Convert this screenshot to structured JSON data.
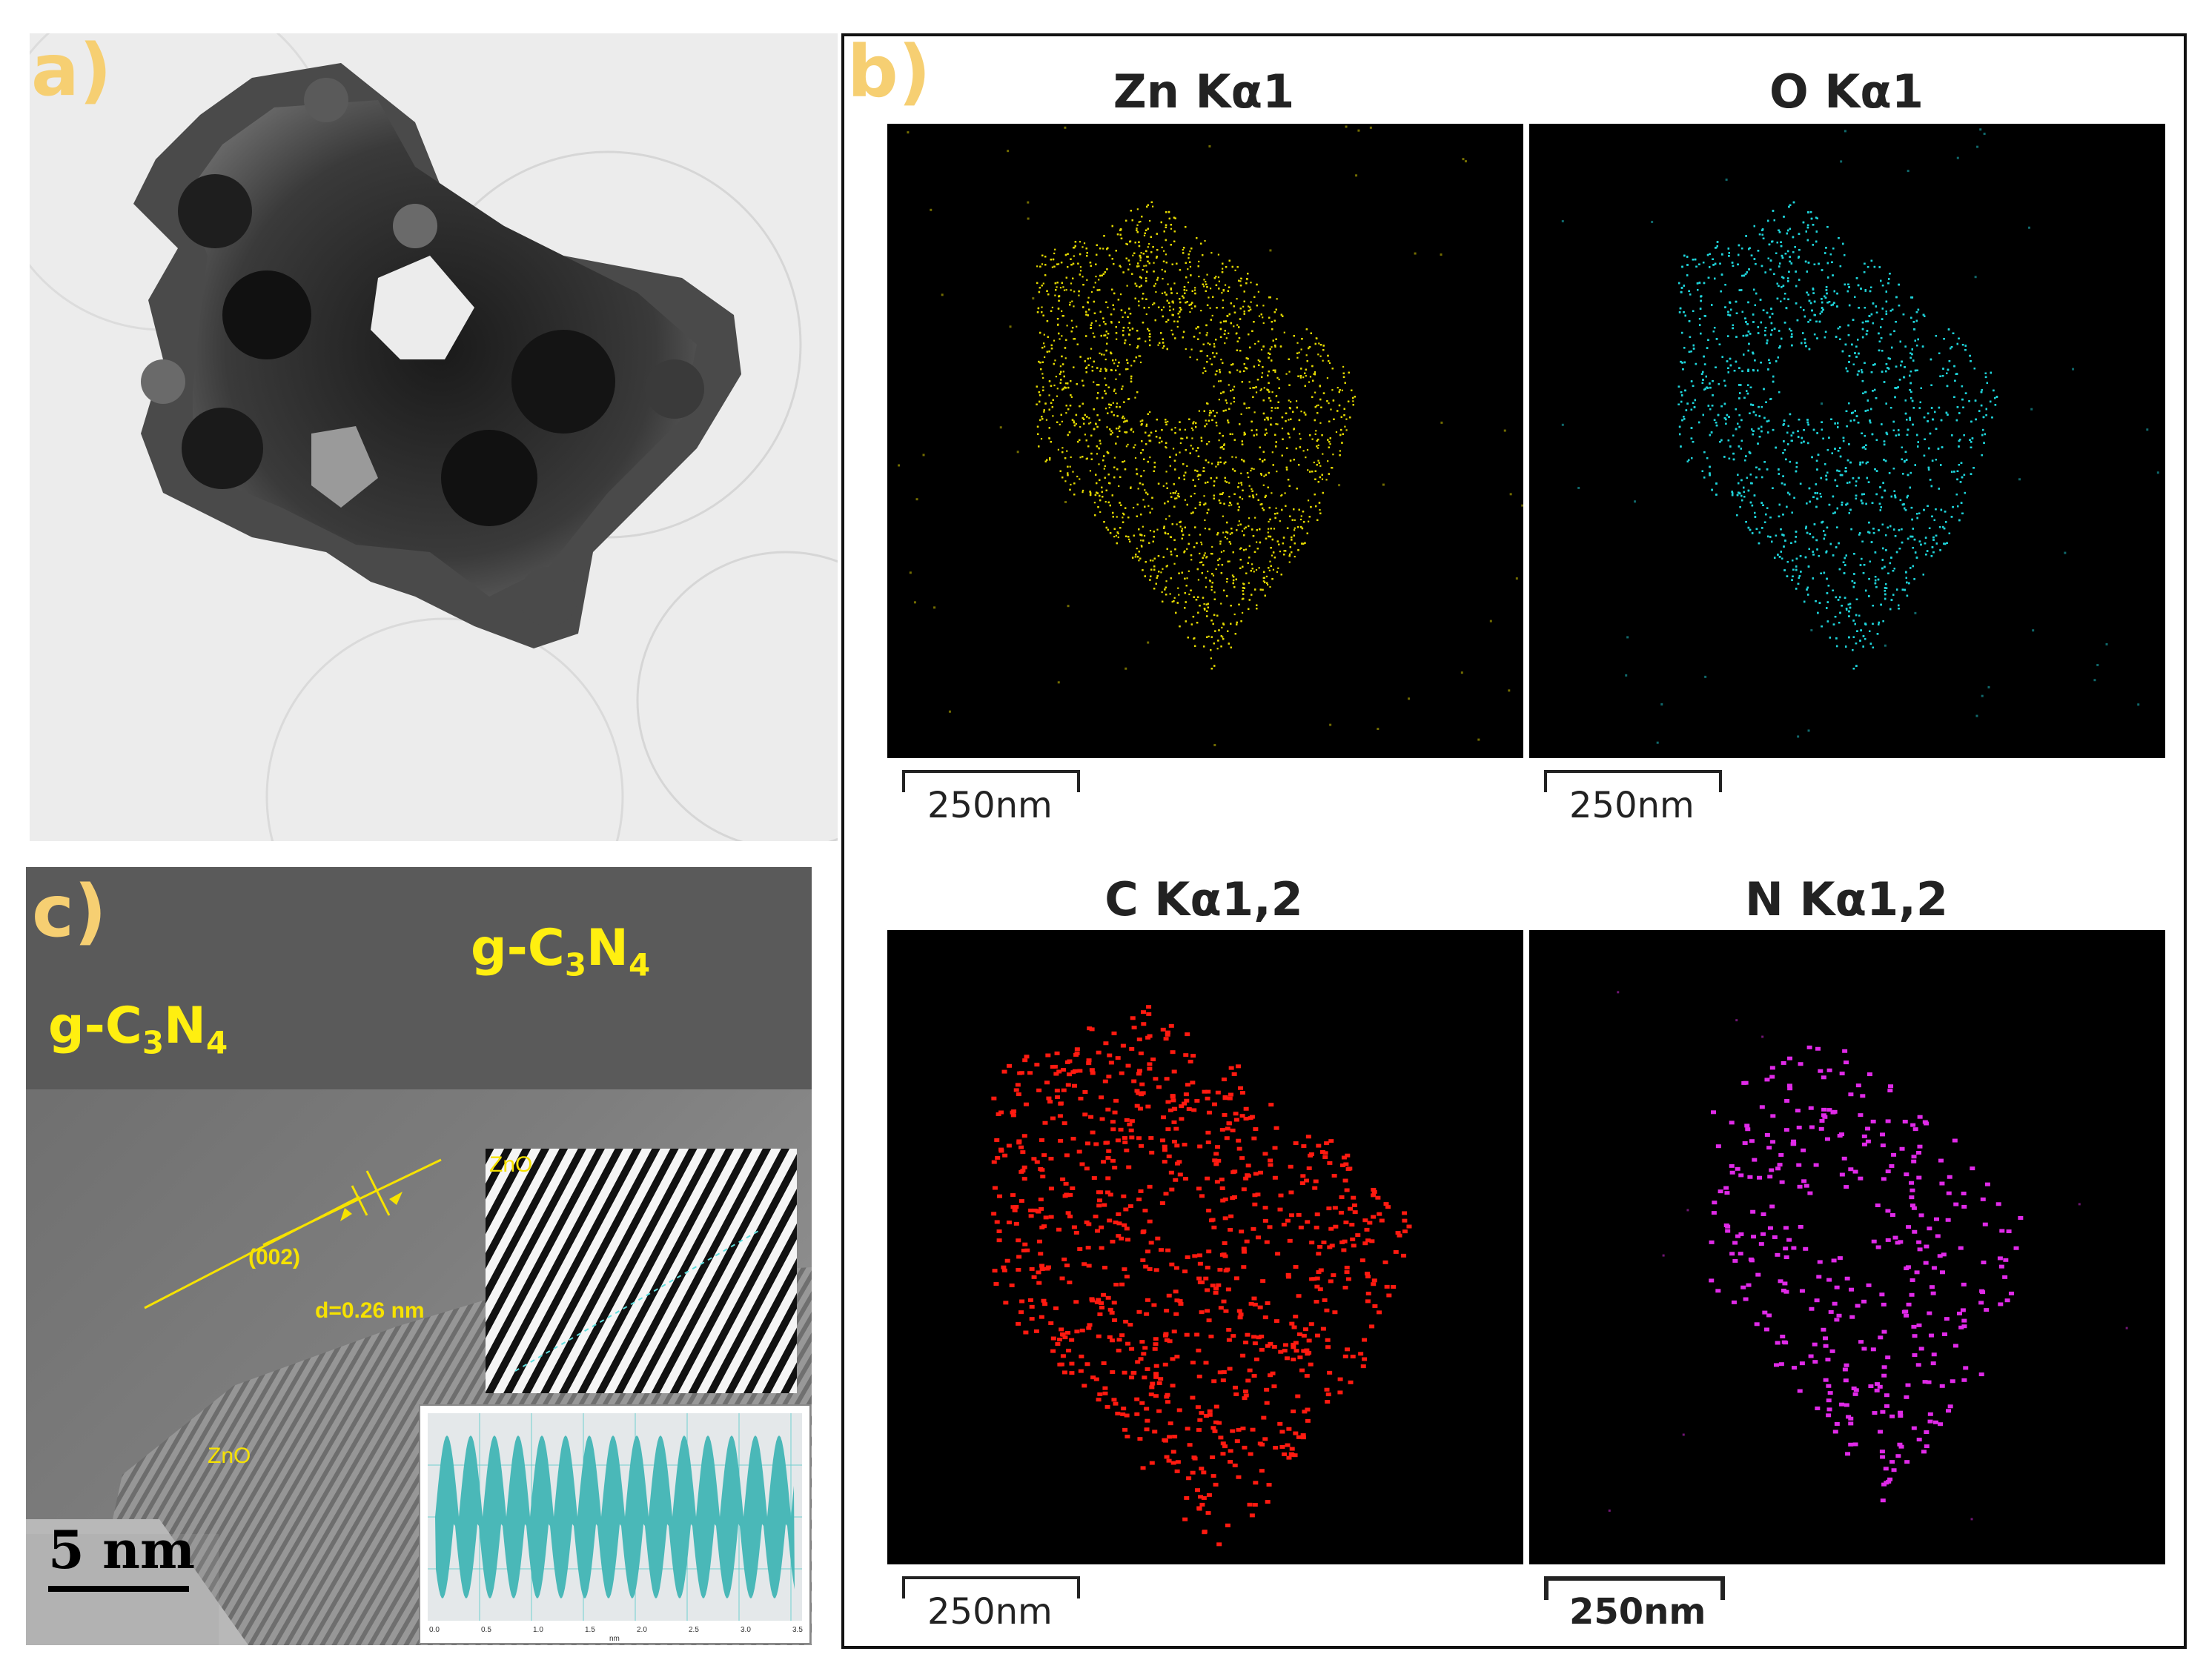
{
  "panels": {
    "a": {
      "label": "a)"
    },
    "b": {
      "label": "b)",
      "maps": [
        {
          "title": "Zn Kα1",
          "color": "#e3d800",
          "scale": "250nm"
        },
        {
          "title": "O Kα1",
          "color": "#1fd2d8",
          "scale": "250nm"
        },
        {
          "title": "C Kα1,2",
          "color": "#ff1a10",
          "scale": "250nm"
        },
        {
          "title": "N Kα1,2",
          "color": "#e02ae8",
          "scale": "250nm"
        }
      ]
    },
    "c": {
      "label": "c)",
      "g1_main": "g-C",
      "g1_sub3": "3",
      "g1_mid": "N",
      "g1_sub4": "4",
      "g2_main": "g-C",
      "g2_sub3": "3",
      "g2_mid": "N",
      "g2_sub4": "4",
      "zno_upper": "ZnO",
      "zno_lower": "ZnO",
      "plane": "(002)",
      "dspacing": "d=0.26 nm",
      "scale": "5 nm",
      "profile_ticks": [
        "0.0",
        "0.5",
        "1.0",
        "1.5",
        "2.0",
        "2.5",
        "3.0",
        "3.5"
      ],
      "profile_unit": "nm",
      "profile_color": "#4ab8b8"
    }
  }
}
